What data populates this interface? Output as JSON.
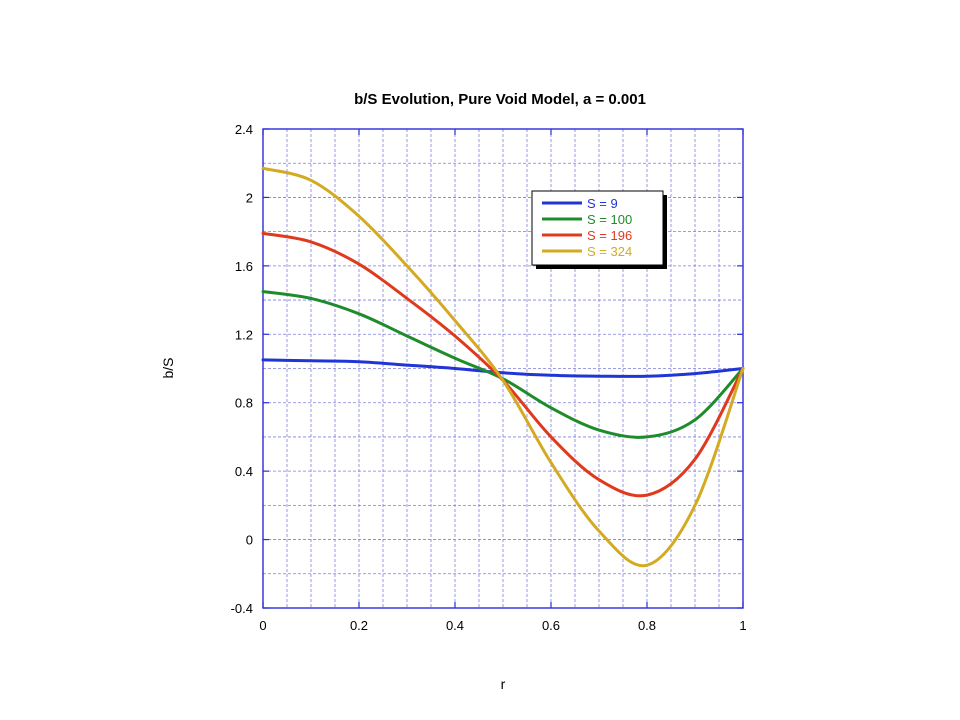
{
  "chart_data": {
    "type": "line",
    "title": "b/S Evolution, Pure Void Model, a = 0.001",
    "xlabel": "r",
    "ylabel": "b/S",
    "xlim": [
      0,
      1
    ],
    "ylim": [
      -0.4,
      2.4
    ],
    "xticks": [
      0,
      0.2,
      0.4,
      0.6,
      0.8,
      1
    ],
    "xtick_labels": [
      "0",
      "0.2",
      "0.4",
      "0.6",
      "0.8",
      "1"
    ],
    "yticks": [
      -0.4,
      0,
      0.4,
      0.8,
      1.2,
      1.6,
      2,
      2.4
    ],
    "ytick_labels": [
      "-0.4",
      "0",
      "0.4",
      "0.8",
      "1.2",
      "1.6",
      "2",
      "2.4"
    ],
    "grid": true,
    "legend_position": "top-right",
    "x": [
      0,
      0.1,
      0.2,
      0.3,
      0.4,
      0.5,
      0.6,
      0.7,
      0.8,
      0.9,
      1.0
    ],
    "series": [
      {
        "name": "S = 9",
        "color": "#2035d6",
        "values": [
          1.05,
          1.045,
          1.04,
          1.02,
          1.0,
          0.975,
          0.96,
          0.955,
          0.955,
          0.97,
          1.0
        ]
      },
      {
        "name": "S = 100",
        "color": "#1e8c2a",
        "values": [
          1.45,
          1.41,
          1.32,
          1.19,
          1.06,
          0.94,
          0.77,
          0.64,
          0.6,
          0.7,
          1.0
        ]
      },
      {
        "name": "S = 196",
        "color": "#e03a1e",
        "values": [
          1.79,
          1.74,
          1.61,
          1.41,
          1.19,
          0.93,
          0.6,
          0.35,
          0.26,
          0.47,
          1.0
        ]
      },
      {
        "name": "S = 324",
        "color": "#d4aa22",
        "values": [
          2.17,
          2.1,
          1.89,
          1.6,
          1.28,
          0.93,
          0.45,
          0.05,
          -0.15,
          0.2,
          1.0
        ]
      }
    ]
  }
}
